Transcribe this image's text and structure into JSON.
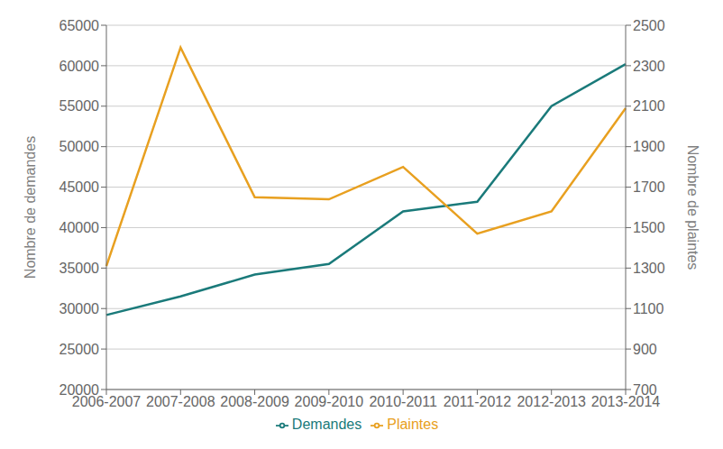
{
  "chart_data": {
    "type": "line",
    "categories": [
      "2006-2007",
      "2007-2008",
      "2008-2009",
      "2009-2010",
      "2010-2011",
      "2011-2012",
      "2012-2013",
      "2013-2014"
    ],
    "series": [
      {
        "name": "Demandes",
        "color": "#1a7a7a",
        "values": [
          29200,
          31500,
          34200,
          35500,
          42000,
          43200,
          55000,
          60200
        ]
      },
      {
        "name": "Plaintes",
        "color": "#e8a020",
        "values": [
          1310,
          2390,
          1650,
          1640,
          1800,
          1470,
          1580,
          2090
        ],
        "axis": "y2"
      }
    ],
    "ylabel": "Nombre de demandes",
    "y2label": "Nombre de plaintes",
    "ylim": [
      20000,
      65000
    ],
    "yticks": [
      20000,
      25000,
      30000,
      35000,
      40000,
      45000,
      50000,
      55000,
      60000,
      65000
    ],
    "y2lim": [
      700,
      2500
    ],
    "y2ticks": [
      700,
      900,
      1100,
      1300,
      1500,
      1700,
      1900,
      2100,
      2300,
      2500
    ],
    "grid": true,
    "legend": "bottom"
  }
}
